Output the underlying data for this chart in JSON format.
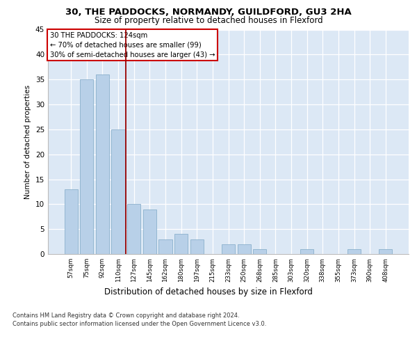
{
  "title1": "30, THE PADDOCKS, NORMANDY, GUILDFORD, GU3 2HA",
  "title2": "Size of property relative to detached houses in Flexford",
  "xlabel": "Distribution of detached houses by size in Flexford",
  "ylabel": "Number of detached properties",
  "categories": [
    "57sqm",
    "75sqm",
    "92sqm",
    "110sqm",
    "127sqm",
    "145sqm",
    "162sqm",
    "180sqm",
    "197sqm",
    "215sqm",
    "233sqm",
    "250sqm",
    "268sqm",
    "285sqm",
    "303sqm",
    "320sqm",
    "338sqm",
    "355sqm",
    "373sqm",
    "390sqm",
    "408sqm"
  ],
  "values": [
    13,
    35,
    36,
    25,
    10,
    9,
    3,
    4,
    3,
    0,
    2,
    2,
    1,
    0,
    0,
    1,
    0,
    0,
    1,
    0,
    1
  ],
  "bar_color": "#b8d0e8",
  "bar_edge_color": "#8ab0cc",
  "vline_x": 3.5,
  "vline_color": "#990000",
  "annotation_lines": [
    "30 THE PADDOCKS: 124sqm",
    "← 70% of detached houses are smaller (99)",
    "30% of semi-detached houses are larger (43) →"
  ],
  "annotation_box_color": "#ffffff",
  "annotation_box_edge": "#cc0000",
  "ylim": [
    0,
    45
  ],
  "yticks": [
    0,
    5,
    10,
    15,
    20,
    25,
    30,
    35,
    40,
    45
  ],
  "footer1": "Contains HM Land Registry data © Crown copyright and database right 2024.",
  "footer2": "Contains public sector information licensed under the Open Government Licence v3.0.",
  "bg_color": "#dce8f5",
  "fig_bg": "#ffffff"
}
